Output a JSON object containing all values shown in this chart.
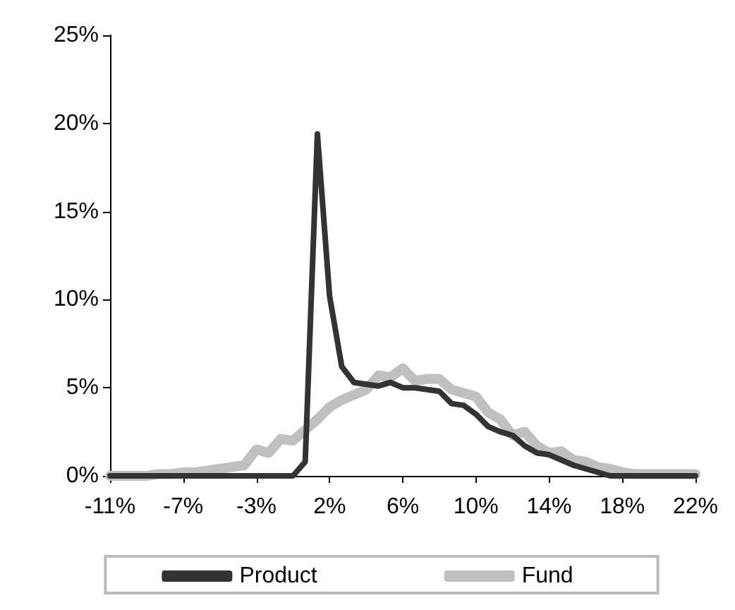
{
  "chart_data": {
    "type": "line",
    "categories": [
      "-11%",
      null,
      null,
      null,
      null,
      null,
      "-7%",
      null,
      null,
      null,
      null,
      null,
      "-3%",
      null,
      null,
      null,
      null,
      null,
      "2%",
      null,
      null,
      null,
      null,
      null,
      "6%",
      null,
      null,
      null,
      null,
      null,
      "10%",
      null,
      null,
      null,
      null,
      null,
      "14%",
      null,
      null,
      null,
      null,
      null,
      "18%",
      null,
      null,
      null,
      null,
      null,
      "22%"
    ],
    "series": [
      {
        "name": "Product",
        "color": "#333333",
        "values": [
          0,
          0,
          0,
          0,
          0,
          0,
          0,
          0,
          0,
          0,
          0,
          0,
          0,
          0,
          0,
          0,
          0.8,
          19.4,
          10.2,
          6.2,
          5.3,
          5.2,
          5.1,
          5.3,
          5.0,
          5.0,
          4.9,
          4.8,
          4.1,
          4.0,
          3.5,
          2.8,
          2.5,
          2.3,
          1.7,
          1.3,
          1.2,
          0.9,
          0.6,
          0.4,
          0.2,
          0,
          0,
          0,
          0,
          0,
          0,
          0,
          0
        ]
      },
      {
        "name": "Fund",
        "color": "#c0c0c0",
        "values": [
          0,
          0,
          0,
          0,
          0.1,
          0.1,
          0.2,
          0.2,
          0.3,
          0.4,
          0.5,
          0.6,
          1.5,
          1.3,
          2.1,
          2.0,
          2.6,
          3.2,
          3.9,
          4.3,
          4.6,
          4.9,
          5.7,
          5.6,
          6.1,
          5.4,
          5.5,
          5.5,
          4.9,
          4.7,
          4.5,
          3.6,
          3.2,
          2.3,
          2.5,
          1.7,
          1.3,
          1.4,
          0.9,
          0.8,
          0.5,
          0.4,
          0.2,
          0.1,
          0.1,
          0.1,
          0.1,
          0.1,
          0.1
        ]
      }
    ],
    "ylim": [
      0,
      25
    ],
    "yticks": [
      {
        "value": 0,
        "label": "0%"
      },
      {
        "value": 5,
        "label": "5%"
      },
      {
        "value": 10,
        "label": "10%"
      },
      {
        "value": 15,
        "label": "15%"
      },
      {
        "value": 20,
        "label": "20%"
      },
      {
        "value": 25,
        "label": "25%"
      }
    ],
    "grid": false,
    "legend": "bottom",
    "marker": "none",
    "line_style": "solid"
  }
}
